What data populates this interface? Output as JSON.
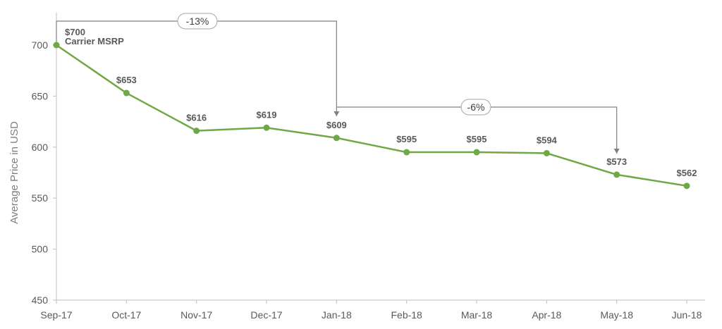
{
  "chart_data": {
    "type": "line",
    "title": "",
    "xlabel": "",
    "ylabel": "Average Price in USD",
    "categories": [
      "Sep-17",
      "Oct-17",
      "Nov-17",
      "Dec-17",
      "Jan-18",
      "Feb-18",
      "Mar-18",
      "Apr-18",
      "May-18",
      "Jun-18"
    ],
    "series": [
      {
        "values": [
          700,
          653,
          616,
          619,
          609,
          595,
          595,
          594,
          573,
          562
        ]
      }
    ],
    "data_labels": [
      "$700",
      "$653",
      "$616",
      "$619",
      "$609",
      "$595",
      "$595",
      "$594",
      "$573",
      "$562"
    ],
    "ylim": [
      450,
      700
    ],
    "yticks": [
      450,
      500,
      550,
      600,
      650,
      700
    ],
    "grid": false,
    "line_color": "#70a845",
    "annotations": {
      "first_point_note": "Carrier MSRP",
      "callouts": [
        {
          "label": "-13%",
          "from_category": "Sep-17",
          "to_category": "Jan-18"
        },
        {
          "label": "-6%",
          "from_category": "Jan-18",
          "to_category": "May-18"
        }
      ]
    }
  }
}
